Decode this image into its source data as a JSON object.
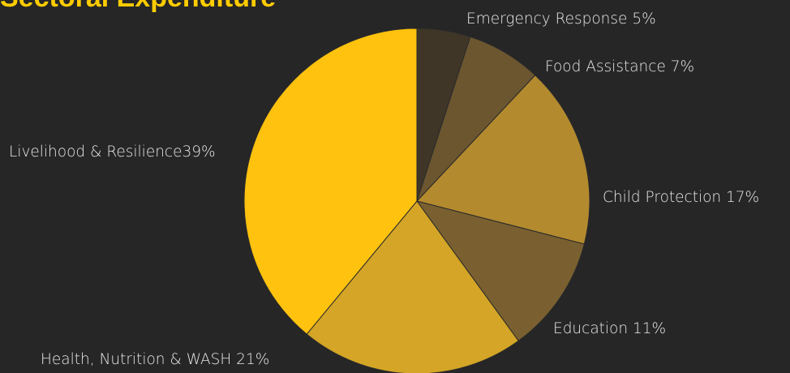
{
  "chart_data": {
    "type": "pie",
    "title": "Sectoral Expenditure",
    "start_angle_deg": -90,
    "direction": "clockwise",
    "slices": [
      {
        "label": "Emergency Response 5%",
        "value": 5,
        "color": "#3f3628"
      },
      {
        "label": "Food Assistance 7%",
        "value": 7,
        "color": "#6b5630"
      },
      {
        "label": "Child Protection 17%",
        "value": 17,
        "color": "#b38a2e"
      },
      {
        "label": "Education 11%",
        "value": 11,
        "color": "#7a6030"
      },
      {
        "label": "Health, Nutrition & WASH 21%",
        "value": 21,
        "color": "#d4a526"
      },
      {
        "label": "Livelihood & Resilience39%",
        "value": 39,
        "color": "#ffc20e"
      }
    ]
  }
}
